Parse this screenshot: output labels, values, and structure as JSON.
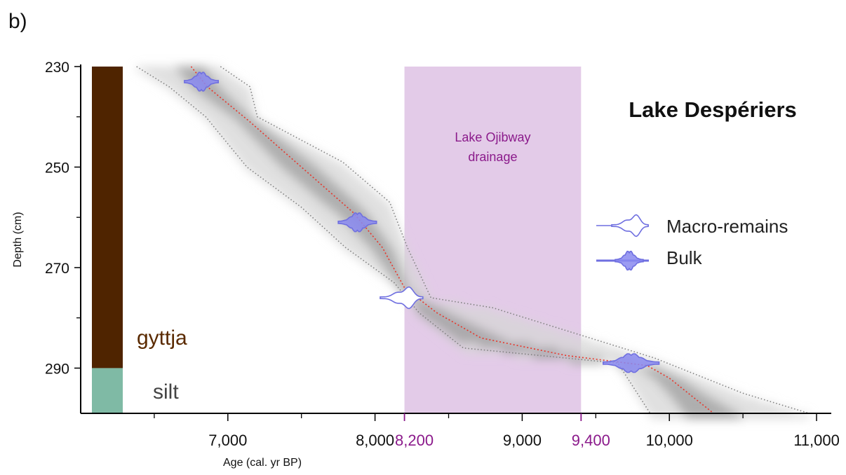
{
  "panel_label": "b)",
  "chart_data": {
    "type": "line",
    "title": "Lake Despériers",
    "xlabel": "Age (cal. yr BP)",
    "ylabel": "Depth (cm)",
    "xlim": [
      6000,
      11100
    ],
    "ylim": [
      230,
      299
    ],
    "y_inverted": true,
    "x_ticks": [
      {
        "value": 7000,
        "label": "7,000"
      },
      {
        "value": 8000,
        "label": "8,000"
      },
      {
        "value": 9000,
        "label": "9,000"
      },
      {
        "value": 10000,
        "label": "10,000"
      },
      {
        "value": 11000,
        "label": "11,000"
      }
    ],
    "x_minor_ticks": [
      6500,
      7500,
      8500,
      9500,
      10500
    ],
    "highlight_ticks": [
      {
        "value": 8200,
        "label": "8,200"
      },
      {
        "value": 9400,
        "label": "9,400"
      }
    ],
    "y_ticks": [
      {
        "value": 230,
        "label": "230"
      },
      {
        "value": 250,
        "label": "250"
      },
      {
        "value": 270,
        "label": "270"
      },
      {
        "value": 290,
        "label": "290"
      }
    ],
    "y_minor_ticks": [
      240,
      260,
      280
    ],
    "shaded_region": {
      "x": [
        8200,
        9400
      ],
      "label_lines": [
        "Lake Ojibway",
        "drainage"
      ],
      "color": "#e3cbe8",
      "label_color": "#8b1a8b"
    },
    "median_model": {
      "color": "#e8352a",
      "points": [
        [
          6750,
          230
        ],
        [
          6860,
          234
        ],
        [
          7150,
          241
        ],
        [
          7500,
          250
        ],
        [
          7850,
          259
        ],
        [
          8050,
          266
        ],
        [
          8200,
          274
        ],
        [
          8420,
          279
        ],
        [
          8720,
          284
        ],
        [
          9300,
          287.5
        ],
        [
          9850,
          289.5
        ],
        [
          10000,
          292
        ],
        [
          10300,
          299
        ]
      ]
    },
    "uncertainty_envelope": {
      "color": "#808080",
      "min": [
        [
          6380,
          230
        ],
        [
          6600,
          234
        ],
        [
          6850,
          240
        ],
        [
          7130,
          250
        ],
        [
          7500,
          258
        ],
        [
          7800,
          266
        ],
        [
          8130,
          273
        ],
        [
          8300,
          279
        ],
        [
          8600,
          286
        ],
        [
          9650,
          289
        ],
        [
          9870,
          299
        ]
      ],
      "max": [
        [
          6950,
          230
        ],
        [
          7150,
          234
        ],
        [
          7200,
          240
        ],
        [
          7780,
          249
        ],
        [
          8100,
          257
        ],
        [
          8220,
          266
        ],
        [
          8380,
          276
        ],
        [
          8800,
          278
        ],
        [
          9900,
          288
        ],
        [
          10500,
          295
        ],
        [
          10950,
          299
        ]
      ]
    },
    "dates": [
      {
        "kind": "Bulk",
        "age": 6820,
        "depth": 233,
        "spread": 230
      },
      {
        "kind": "Bulk",
        "age": 7880,
        "depth": 261,
        "spread": 260
      },
      {
        "kind": "Macro-remains",
        "age": 8180,
        "depth": 276,
        "spread": 290
      },
      {
        "kind": "Bulk",
        "age": 9740,
        "depth": 289,
        "spread": 380
      }
    ],
    "legend": {
      "position": "right",
      "entries": [
        {
          "label": "Macro-remains",
          "style": "hollow",
          "color": "#6f6fe0"
        },
        {
          "label": "Bulk",
          "style": "filled",
          "color": "#6f6fe0"
        }
      ]
    },
    "lithology": [
      {
        "label": "gyttja",
        "top": 230,
        "bottom": 290,
        "color": "#4f2400",
        "label_color": "#5a2a00"
      },
      {
        "label": "silt",
        "top": 290,
        "bottom": 299,
        "color": "#7fbaa5",
        "label_color": "#444444"
      }
    ]
  }
}
